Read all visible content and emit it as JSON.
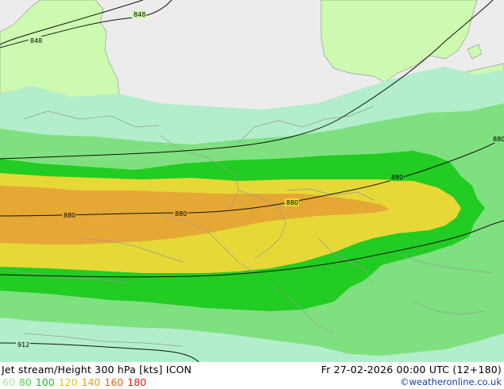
{
  "map": {
    "title": "Jet stream/Height 300 hPa [kts] ICON",
    "valid_time": "Fr 27-02-2026 00:00 UTC (12+180)",
    "credit": "©weatheronline.co.uk",
    "legend": [
      {
        "label": "60",
        "color": "#a8e8a8"
      },
      {
        "label": "80",
        "color": "#55d055"
      },
      {
        "label": "100",
        "color": "#1cbc1c"
      },
      {
        "label": "120",
        "color": "#d8cc22"
      },
      {
        "label": "140",
        "color": "#e0a020"
      },
      {
        "label": "160",
        "color": "#e06a18"
      },
      {
        "label": "180",
        "color": "#d82020"
      }
    ],
    "fill_colors": {
      "sea": "#ececec",
      "land": "#cdfab0",
      "band_60": "#b2eecb",
      "band_80": "#7ee07e",
      "band_100": "#22cc22",
      "band_120": "#e6d836",
      "band_140": "#e6a834"
    },
    "contour_labels": {
      "c848_a": "848",
      "c848_b": "848",
      "c880_1": "880",
      "c880_2": "880",
      "c880_3": "880",
      "c880_4": "880",
      "c880_5": "880",
      "c912": "912"
    }
  }
}
